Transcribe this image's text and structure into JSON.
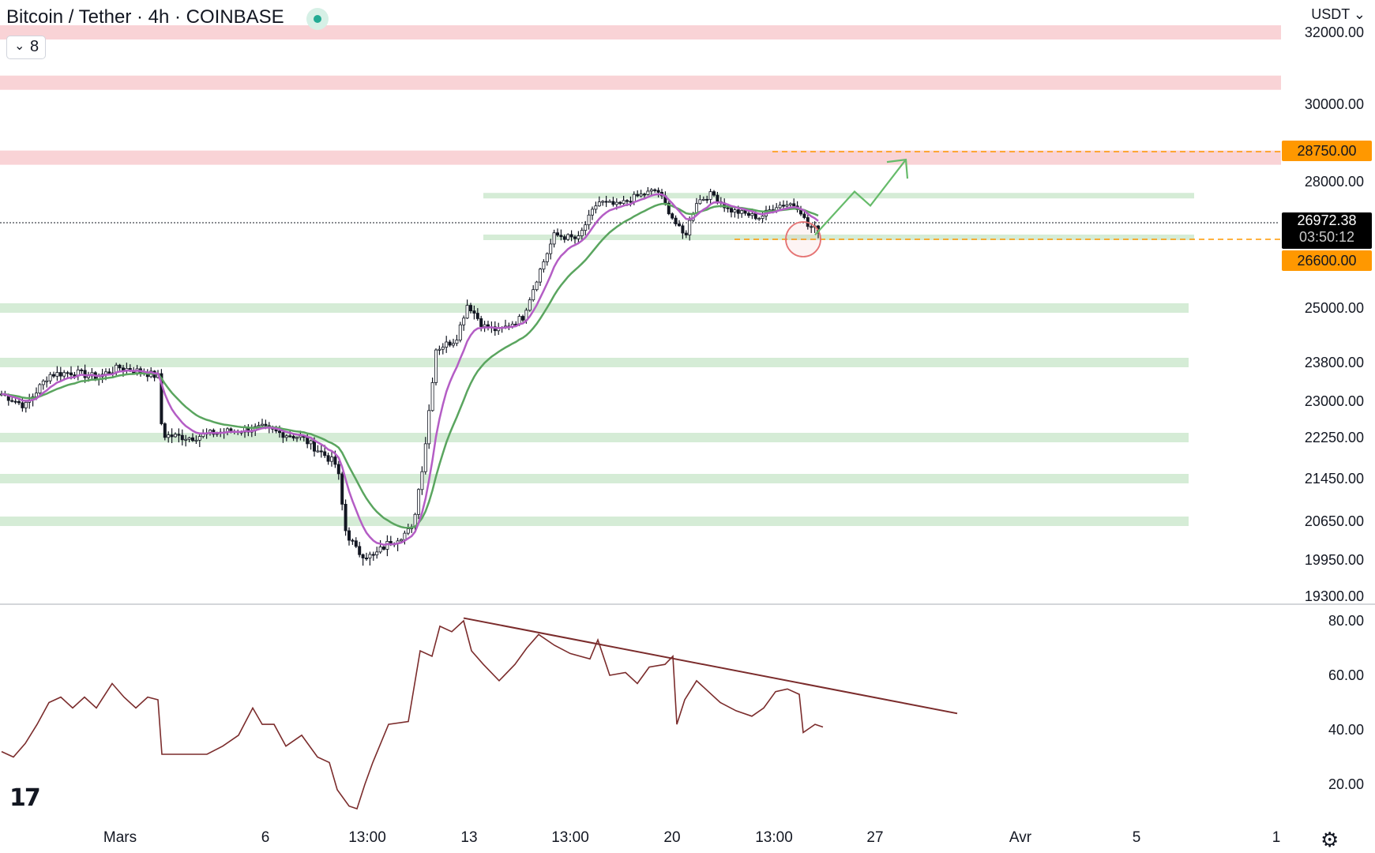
{
  "header": {
    "title": "Bitcoin / Tether · 4h · COINBASE",
    "indicator_count": "8",
    "currency": "USDT"
  },
  "price_axis": {
    "ticks": [
      "32000.00",
      "30000.00",
      "28000.00",
      "25000.00",
      "23800.00",
      "23000.00",
      "22250.00",
      "21450.00",
      "20650.00",
      "19950.00",
      "19300.00"
    ],
    "tags": {
      "resistance": "28750.00",
      "last_price": "26972.38",
      "countdown": "03:50:12",
      "support": "26600.00"
    }
  },
  "rsi_axis": {
    "ticks": [
      "80.00",
      "60.00",
      "40.00",
      "20.00"
    ]
  },
  "time_axis": {
    "labels": [
      "Mars",
      "6",
      "13:00",
      "13",
      "13:00",
      "20",
      "13:00",
      "27",
      "Avr",
      "5",
      "1"
    ]
  },
  "colors": {
    "candle": "#131722",
    "ema_fast": "#b45dc5",
    "ema_slow": "#5aa55f",
    "resistance_zone": "#f9d3d6",
    "support_zone": "#d5ecd6",
    "level_dash": "#ff9800",
    "rsi": "#7b2c2c",
    "projection": "#66bb6a",
    "circle": "#e57373"
  },
  "icons": {
    "logo": "tradingview-logo-icon",
    "settings": "gear-icon",
    "live": "live-status-icon",
    "indicator_toggle": "chevron-down-icon"
  },
  "chart_data": [
    {
      "type": "candlestick",
      "title": "Bitcoin / Tether · 4h · COINBASE",
      "timeframe": "4h",
      "x_labels": [
        "Mars",
        "6",
        "13:00",
        "13",
        "13:00",
        "20",
        "13:00",
        "27",
        "Avr",
        "5",
        "1"
      ],
      "ylim": [
        19300,
        32500
      ],
      "y_ticks": [
        32000,
        30000,
        28000,
        25000,
        23800,
        23000,
        22250,
        21450,
        20650,
        19950,
        19300
      ],
      "price_path": [
        [
          0,
          23150
        ],
        [
          30,
          22900
        ],
        [
          60,
          23550
        ],
        [
          90,
          23600
        ],
        [
          120,
          23500
        ],
        [
          150,
          23700
        ],
        [
          180,
          23600
        ],
        [
          200,
          23500
        ],
        [
          203,
          22300
        ],
        [
          240,
          22250
        ],
        [
          270,
          22350
        ],
        [
          300,
          22400
        ],
        [
          330,
          22450
        ],
        [
          350,
          22350
        ],
        [
          380,
          22250
        ],
        [
          410,
          21900
        ],
        [
          425,
          21700
        ],
        [
          435,
          20500
        ],
        [
          450,
          20100
        ],
        [
          470,
          20000
        ],
        [
          485,
          20200
        ],
        [
          500,
          20350
        ],
        [
          520,
          20500
        ],
        [
          535,
          21900
        ],
        [
          550,
          24100
        ],
        [
          575,
          24300
        ],
        [
          590,
          25100
        ],
        [
          610,
          24600
        ],
        [
          630,
          24500
        ],
        [
          660,
          24800
        ],
        [
          680,
          25800
        ],
        [
          700,
          26700
        ],
        [
          730,
          26600
        ],
        [
          755,
          27500
        ],
        [
          780,
          27400
        ],
        [
          800,
          27600
        ],
        [
          830,
          27800
        ],
        [
          855,
          26900
        ],
        [
          865,
          26650
        ],
        [
          880,
          27500
        ],
        [
          900,
          27700
        ],
        [
          920,
          27300
        ],
        [
          940,
          27200
        ],
        [
          960,
          27100
        ],
        [
          980,
          27400
        ],
        [
          1000,
          27450
        ],
        [
          1010,
          27350
        ],
        [
          1020,
          26900
        ],
        [
          1035,
          26800
        ]
      ],
      "last_price": 26972.38,
      "ema_fast_end": 27000,
      "ema_slow_end": 27150
    },
    {
      "type": "line",
      "name": "RSI",
      "ylim": [
        10,
        85
      ],
      "y_ticks": [
        80,
        60,
        40,
        20
      ],
      "values": [
        [
          0,
          32
        ],
        [
          15,
          30
        ],
        [
          30,
          35
        ],
        [
          45,
          42
        ],
        [
          60,
          50
        ],
        [
          75,
          52
        ],
        [
          90,
          48
        ],
        [
          105,
          52
        ],
        [
          120,
          48
        ],
        [
          140,
          57
        ],
        [
          155,
          52
        ],
        [
          170,
          48
        ],
        [
          185,
          52
        ],
        [
          198,
          51
        ],
        [
          203,
          31
        ],
        [
          240,
          31
        ],
        [
          260,
          31
        ],
        [
          280,
          34
        ],
        [
          300,
          38
        ],
        [
          318,
          48
        ],
        [
          330,
          42
        ],
        [
          345,
          42
        ],
        [
          360,
          34
        ],
        [
          380,
          38
        ],
        [
          400,
          30
        ],
        [
          415,
          28
        ],
        [
          425,
          18
        ],
        [
          440,
          12
        ],
        [
          450,
          11
        ],
        [
          460,
          20
        ],
        [
          470,
          28
        ],
        [
          490,
          42
        ],
        [
          515,
          43
        ],
        [
          530,
          69
        ],
        [
          545,
          67
        ],
        [
          555,
          78
        ],
        [
          570,
          76
        ],
        [
          585,
          80
        ],
        [
          595,
          69
        ],
        [
          610,
          64
        ],
        [
          630,
          58
        ],
        [
          650,
          64
        ],
        [
          665,
          70
        ],
        [
          680,
          75
        ],
        [
          700,
          71
        ],
        [
          720,
          68
        ],
        [
          745,
          66
        ],
        [
          755,
          73
        ],
        [
          770,
          60
        ],
        [
          790,
          61
        ],
        [
          805,
          57
        ],
        [
          820,
          63
        ],
        [
          840,
          64
        ],
        [
          850,
          67
        ],
        [
          855,
          42
        ],
        [
          865,
          51
        ],
        [
          880,
          58
        ],
        [
          895,
          54
        ],
        [
          910,
          50
        ],
        [
          930,
          47
        ],
        [
          950,
          45
        ],
        [
          965,
          48
        ],
        [
          980,
          54
        ],
        [
          995,
          55
        ],
        [
          1010,
          53
        ],
        [
          1015,
          39
        ],
        [
          1030,
          42
        ],
        [
          1040,
          41
        ]
      ],
      "trendline": [
        [
          585,
          81
        ],
        [
          1210,
          46
        ]
      ]
    }
  ],
  "annotations": {
    "resistance_zones": [
      32000,
      30600,
      28600
    ],
    "support_zones": [
      27600,
      26600,
      25000,
      23800,
      22250,
      21450,
      20650
    ],
    "dashed_levels": [
      28750,
      26600
    ],
    "circle_at": [
      1015,
      26600
    ],
    "projection_path": [
      [
        1030,
        26700
      ],
      [
        1080,
        27750
      ],
      [
        1100,
        27400
      ],
      [
        1145,
        28550
      ]
    ]
  }
}
